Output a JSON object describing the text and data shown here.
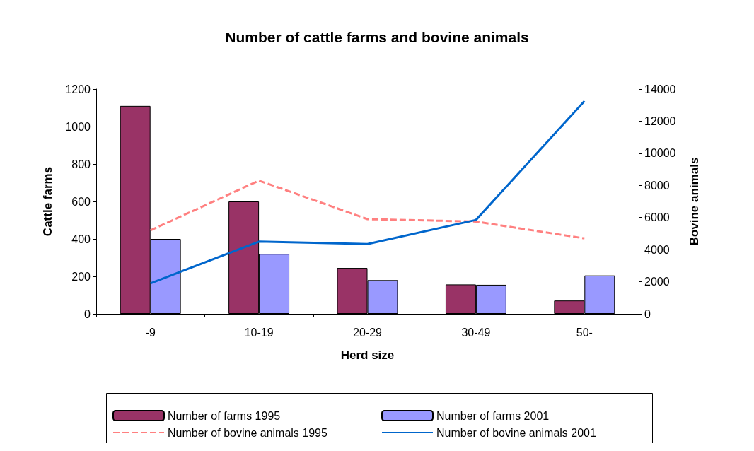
{
  "chart_data": {
    "type": "bar",
    "title": "Number of cattle farms and bovine animals",
    "xlabel": "Herd size",
    "ylabel": "Cattle farms",
    "y2label": "Bovine animals",
    "categories": [
      "-9",
      "10-19",
      "20-29",
      "30-49",
      "50-"
    ],
    "series": [
      {
        "name": "Number of farms 1995",
        "color": "#993366",
        "values": [
          1110,
          600,
          245,
          157,
          71
        ]
      },
      {
        "name": "Number of farms 2001",
        "color": "#9999ff",
        "values": [
          400,
          320,
          180,
          155,
          205
        ]
      },
      {
        "name": "Number of bovine animals 1995",
        "type": "line",
        "axis": "y2",
        "line_style": "dashed",
        "color": "#ff8080",
        "values": [
          5200,
          8300,
          5900,
          5750,
          4700
        ]
      },
      {
        "name": "Number of bovine animals 2001",
        "type": "line",
        "axis": "y2",
        "line_style": "solid",
        "color": "#0066cc",
        "values": [
          1900,
          4500,
          4350,
          5850,
          13250
        ]
      }
    ],
    "ylim": [
      0,
      1200
    ],
    "yticks": [
      0,
      200,
      400,
      600,
      800,
      1000,
      1200
    ],
    "y2lim": [
      0,
      14000
    ],
    "y2ticks": [
      0,
      2000,
      4000,
      6000,
      8000,
      10000,
      12000,
      14000
    ],
    "grid": false,
    "legend": "bottom"
  }
}
